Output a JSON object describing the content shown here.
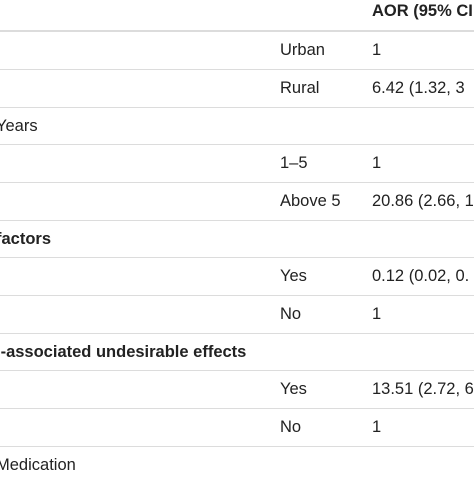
{
  "header": {
    "aor_label": "AOR (95% CI"
  },
  "rows": [
    {
      "type": "level",
      "level": "Urban",
      "aor": "1"
    },
    {
      "type": "level",
      "level": "Rural",
      "aor": "6.42 (1.32, 3"
    },
    {
      "type": "section",
      "label": "Years"
    },
    {
      "type": "level",
      "level": "1–5",
      "aor": "1"
    },
    {
      "type": "level",
      "level": "Above 5",
      "aor": "20.86 (2.66, 1"
    },
    {
      "type": "section",
      "label": "factors",
      "bold": true
    },
    {
      "type": "level",
      "level": "Yes",
      "aor": "0.12 (0.02, 0."
    },
    {
      "type": "level",
      "level": "No",
      "aor": "1"
    },
    {
      "type": "section",
      "label": "l-associated undesirable effects",
      "bold": true
    },
    {
      "type": "level",
      "level": "Yes",
      "aor": "13.51 (2.72, 6"
    },
    {
      "type": "level",
      "level": "No",
      "aor": "1"
    },
    {
      "type": "section",
      "label": "Medication"
    }
  ]
}
